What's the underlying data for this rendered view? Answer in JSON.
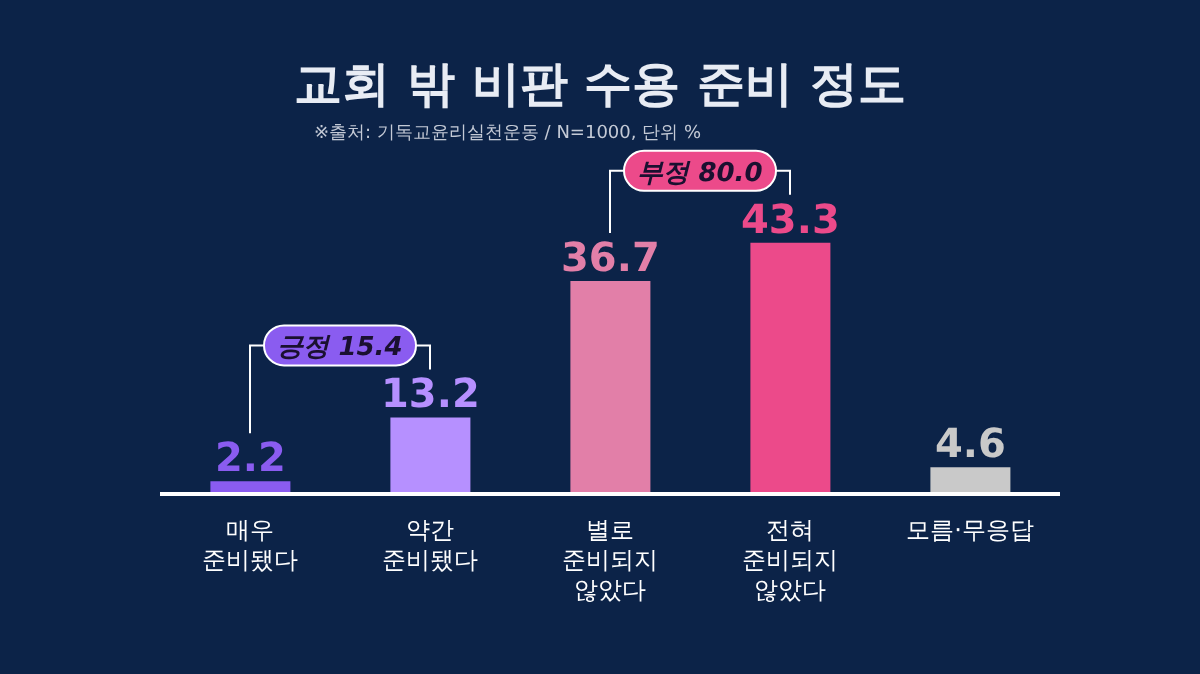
{
  "chart_data": {
    "type": "bar",
    "title": "교회 밖 비판 수용 준비 정도",
    "subtitle": "※출처: 기독교윤리실천운동 / N=1000, 단위 %",
    "categories": [
      "매우\n준비됐다",
      "약간\n준비됐다",
      "별로\n준비되지\n않았다",
      "전혀\n준비되지\n않았다",
      "모름·무응답"
    ],
    "values": [
      2.2,
      13.2,
      36.7,
      43.3,
      4.6
    ],
    "colors": [
      "#8a5cf0",
      "#b690ff",
      "#e27fa8",
      "#ec4a8a",
      "#c9c9c9"
    ],
    "data_labels": true,
    "annotations": [
      "긍정 15.4",
      "부정 80.0"
    ]
  }
}
